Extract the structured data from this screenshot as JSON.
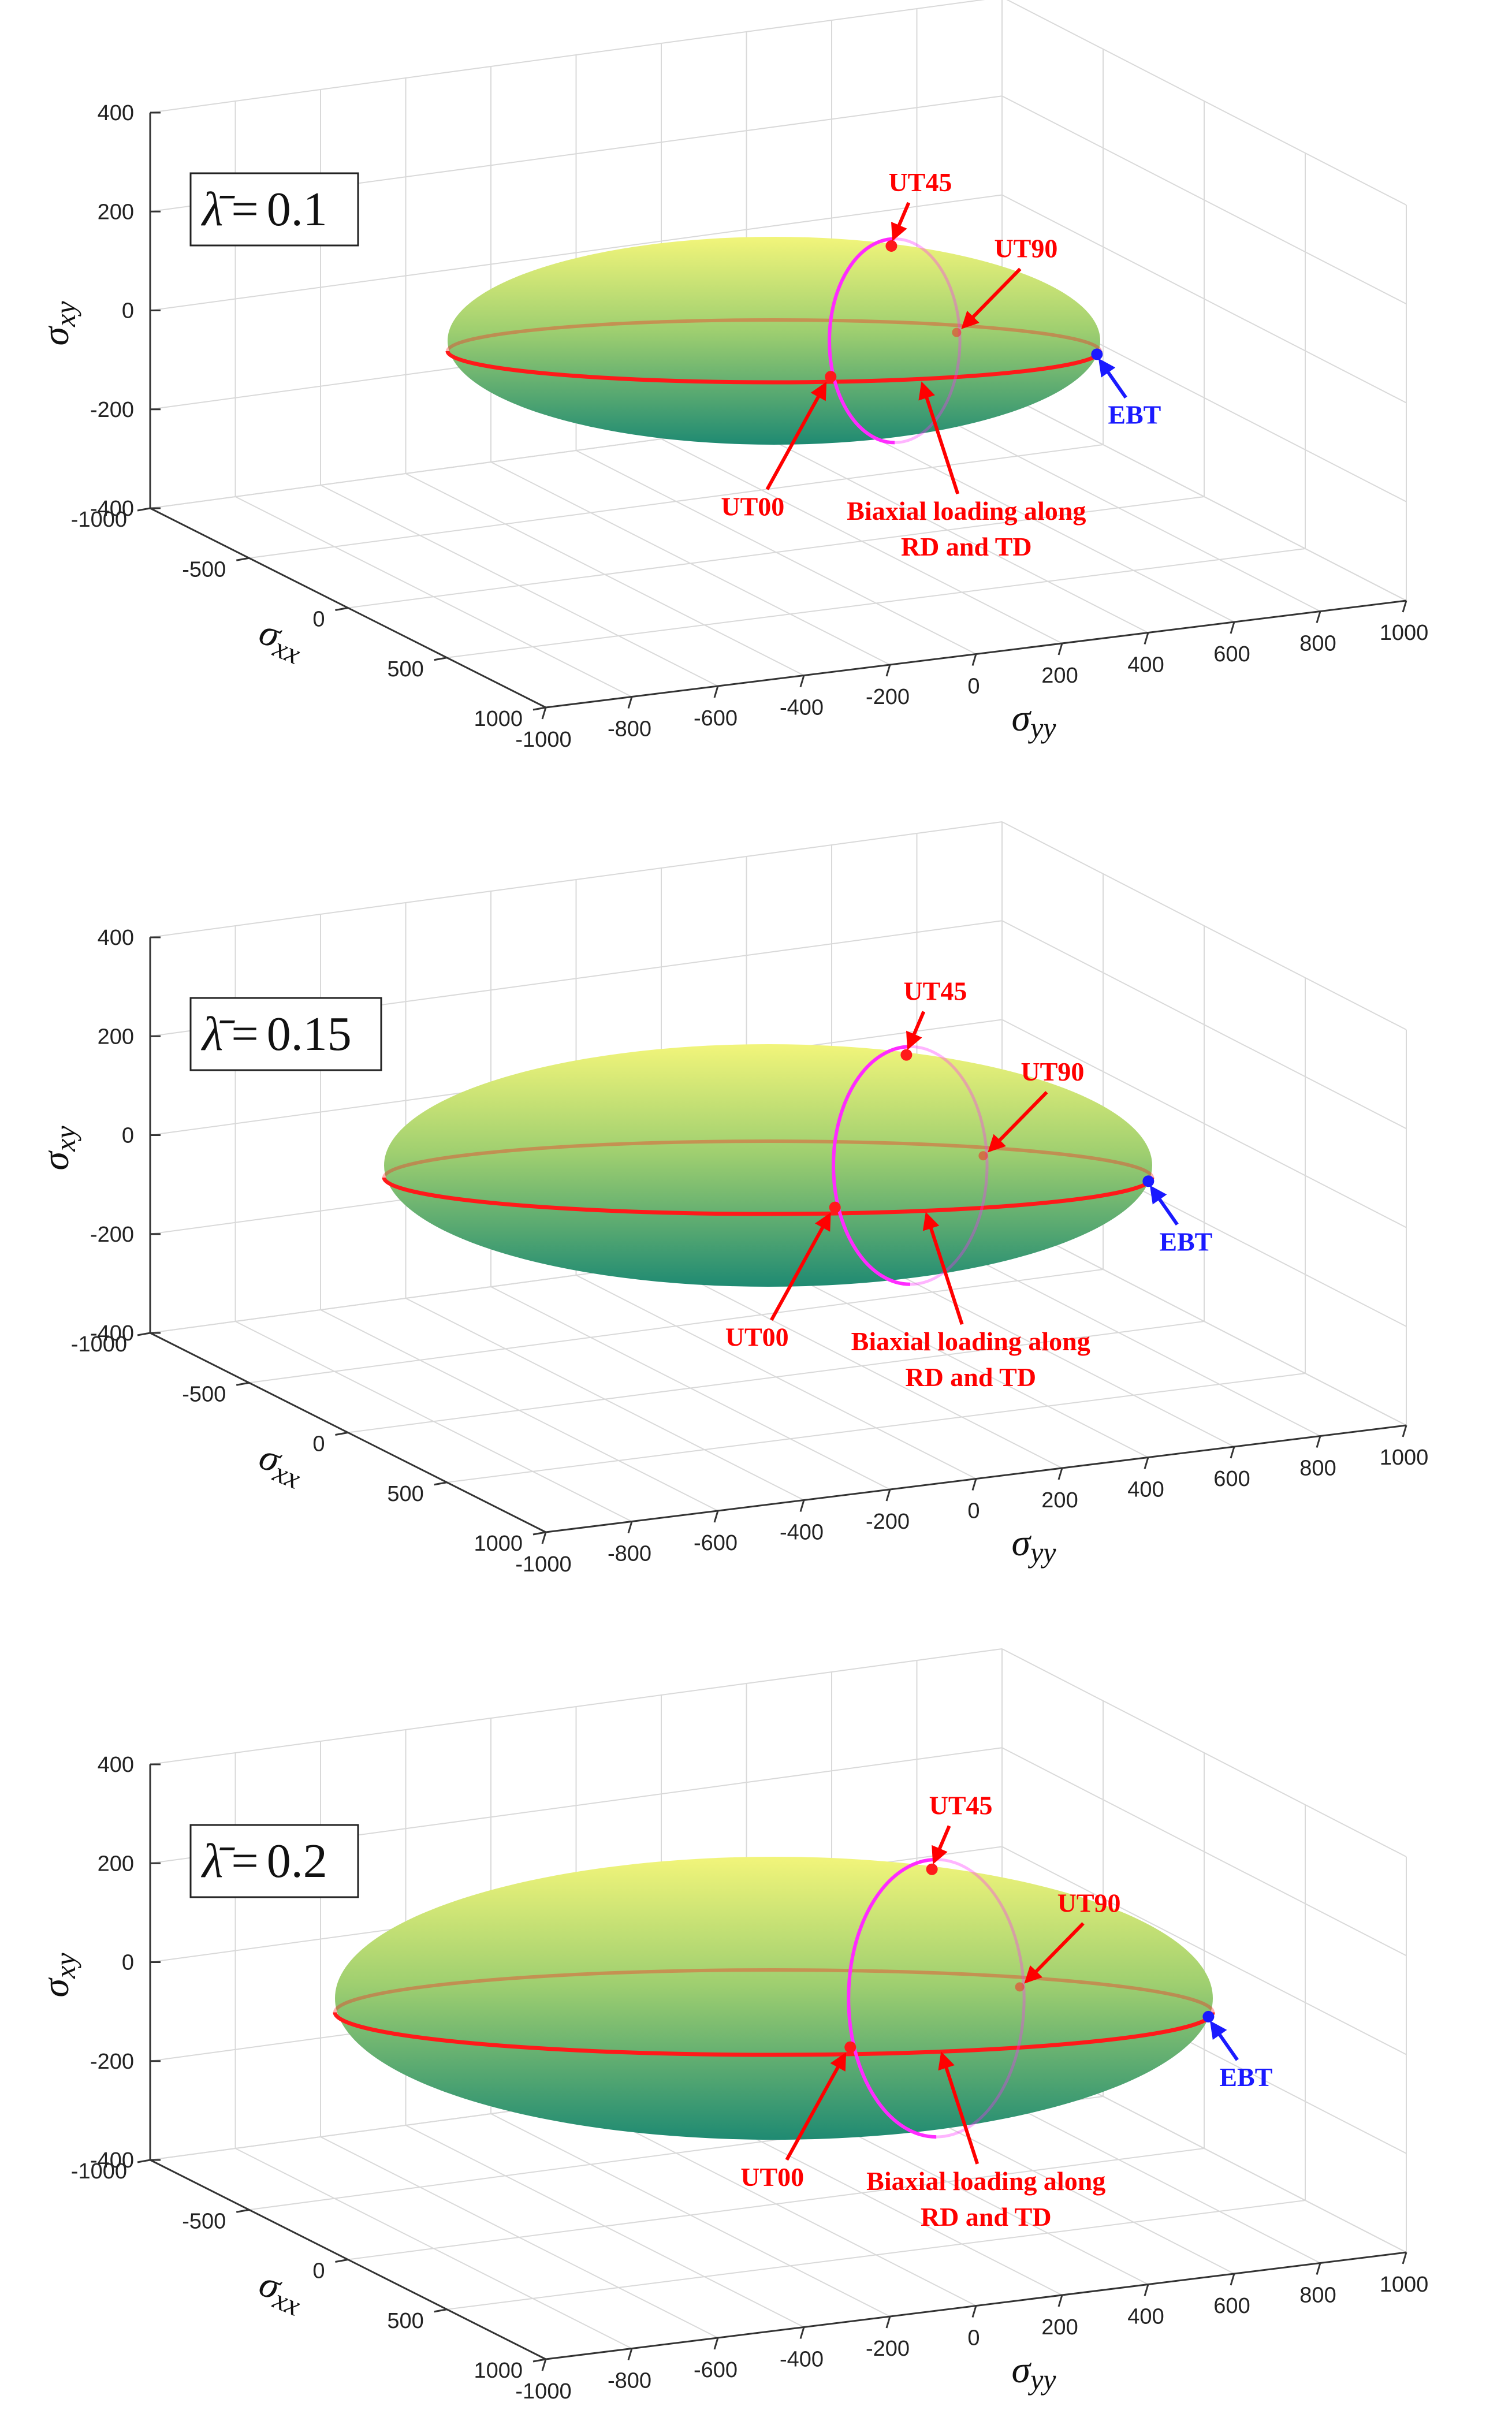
{
  "colors": {
    "surface_top": "#f2f57a",
    "surface_mid": "#9fcf70",
    "surface_bottom": "#1f8a72",
    "red_path": "#ff1a1a",
    "magenta_path": "#ff2bff",
    "annotation_red": "#ff0000",
    "annotation_blue": "#1a1aff",
    "grid": "#d9d9d9",
    "axis": "#333333"
  },
  "chart_data": [
    {
      "type": "surface3d",
      "parameter": {
        "symbol": "λ̄",
        "equals": "=",
        "value": "0.1"
      },
      "xlabel": "σ",
      "xlabel_sub": "xx",
      "ylabel": "σ",
      "ylabel_sub": "yy",
      "zlabel": "σ",
      "zlabel_sub": "xy",
      "xlim": [
        -1000,
        1000
      ],
      "ylim": [
        -1000,
        1000
      ],
      "zlim": [
        -400,
        400
      ],
      "x_ticks": [
        "-1000",
        "-500",
        "0",
        "500",
        "1000"
      ],
      "y_ticks": [
        "-1000",
        "-800",
        "-600",
        "-400",
        "-200",
        "0",
        "200",
        "400",
        "600",
        "800",
        "1000"
      ],
      "z_ticks": [
        "400",
        "200",
        "0",
        "-200",
        "-400"
      ],
      "grid": true,
      "annotations": {
        "ut45": "UT45",
        "ut90": "UT90",
        "ebt": "EBT",
        "ut00": "UT00",
        "biaxial_line1": "Biaxial loading along",
        "biaxial_line2": "RD and TD"
      }
    },
    {
      "type": "surface3d",
      "parameter": {
        "symbol": "λ̄",
        "equals": "=",
        "value": "0.15"
      },
      "xlabel": "σ",
      "xlabel_sub": "xx",
      "ylabel": "σ",
      "ylabel_sub": "yy",
      "zlabel": "σ",
      "zlabel_sub": "xy",
      "xlim": [
        -1000,
        1000
      ],
      "ylim": [
        -1000,
        1000
      ],
      "zlim": [
        -400,
        400
      ],
      "x_ticks": [
        "-1000",
        "-500",
        "0",
        "500",
        "1000"
      ],
      "y_ticks": [
        "-1000",
        "-800",
        "-600",
        "-400",
        "-200",
        "0",
        "200",
        "400",
        "600",
        "800",
        "1000"
      ],
      "z_ticks": [
        "400",
        "200",
        "0",
        "-200",
        "-400"
      ],
      "grid": true,
      "annotations": {
        "ut45": "UT45",
        "ut90": "UT90",
        "ebt": "EBT",
        "ut00": "UT00",
        "biaxial_line1": "Biaxial loading along",
        "biaxial_line2": "RD and TD"
      }
    },
    {
      "type": "surface3d",
      "parameter": {
        "symbol": "λ̄",
        "equals": "=",
        "value": "0.2"
      },
      "xlabel": "σ",
      "xlabel_sub": "xx",
      "ylabel": "σ",
      "ylabel_sub": "yy",
      "zlabel": "σ",
      "zlabel_sub": "xy",
      "xlim": [
        -1000,
        1000
      ],
      "ylim": [
        -1000,
        1000
      ],
      "zlim": [
        -400,
        400
      ],
      "x_ticks": [
        "-1000",
        "-500",
        "0",
        "500",
        "1000"
      ],
      "y_ticks": [
        "-1000",
        "-800",
        "-600",
        "-400",
        "-200",
        "0",
        "200",
        "400",
        "600",
        "800",
        "1000"
      ],
      "z_ticks": [
        "400",
        "200",
        "0",
        "-200",
        "-400"
      ],
      "grid": true,
      "annotations": {
        "ut45": "UT45",
        "ut90": "UT90",
        "ebt": "EBT",
        "ut00": "UT00",
        "biaxial_line1": "Biaxial loading along",
        "biaxial_line2": "RD and TD"
      }
    }
  ]
}
